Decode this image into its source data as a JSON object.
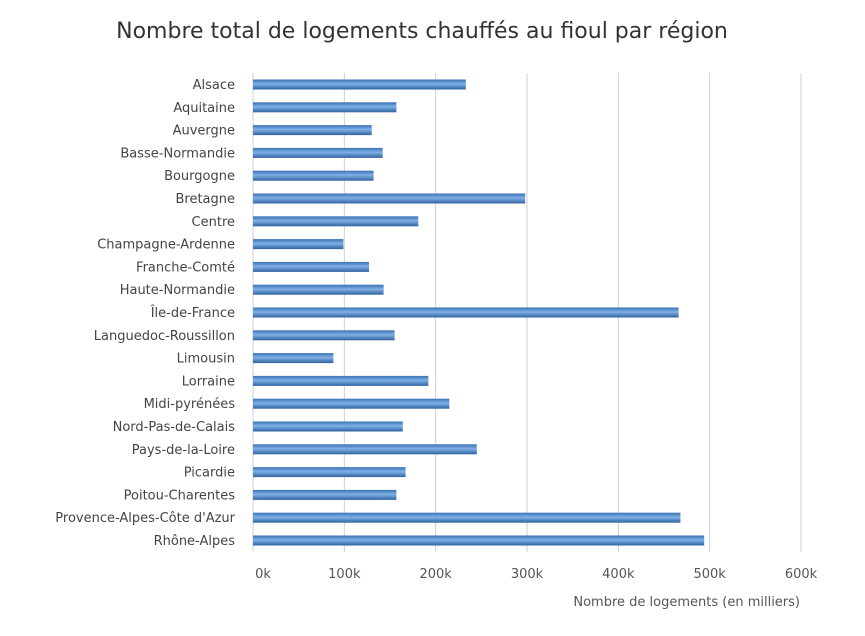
{
  "chart_data": {
    "type": "bar",
    "orientation": "horizontal",
    "title": "Nombre total de logements chauffés au fioul par région",
    "xlabel": "Nombre de logements (en milliers)",
    "ylabel": "",
    "xlim": [
      0,
      600000
    ],
    "ticks": [
      0,
      100000,
      200000,
      300000,
      400000,
      500000,
      600000
    ],
    "tick_labels": [
      "0k",
      "100k",
      "200k",
      "300k",
      "400k",
      "500k",
      "600k"
    ],
    "grid": true,
    "legend": "none",
    "bar_color": "#4a86c8",
    "categories": [
      "Alsace",
      "Aquitaine",
      "Auvergne",
      "Basse-Normandie",
      "Bourgogne",
      "Bretagne",
      "Centre",
      "Champagne-Ardenne",
      "Franche-Comté",
      "Haute-Normandie",
      "Île-de-France",
      "Languedoc-Roussillon",
      "Limousin",
      "Lorraine",
      "Midi-pyrénées",
      "Nord-Pas-de-Calais",
      "Pays-de-la-Loire",
      "Picardie",
      "Poitou-Charentes",
      "Provence-Alpes-Côte d'Azur",
      "Rhône-Alpes"
    ],
    "values": [
      233000,
      157000,
      130000,
      142000,
      132000,
      298000,
      181000,
      99000,
      127000,
      143000,
      466000,
      155000,
      88000,
      192000,
      215000,
      164000,
      245000,
      167000,
      157000,
      468000,
      494000
    ]
  }
}
